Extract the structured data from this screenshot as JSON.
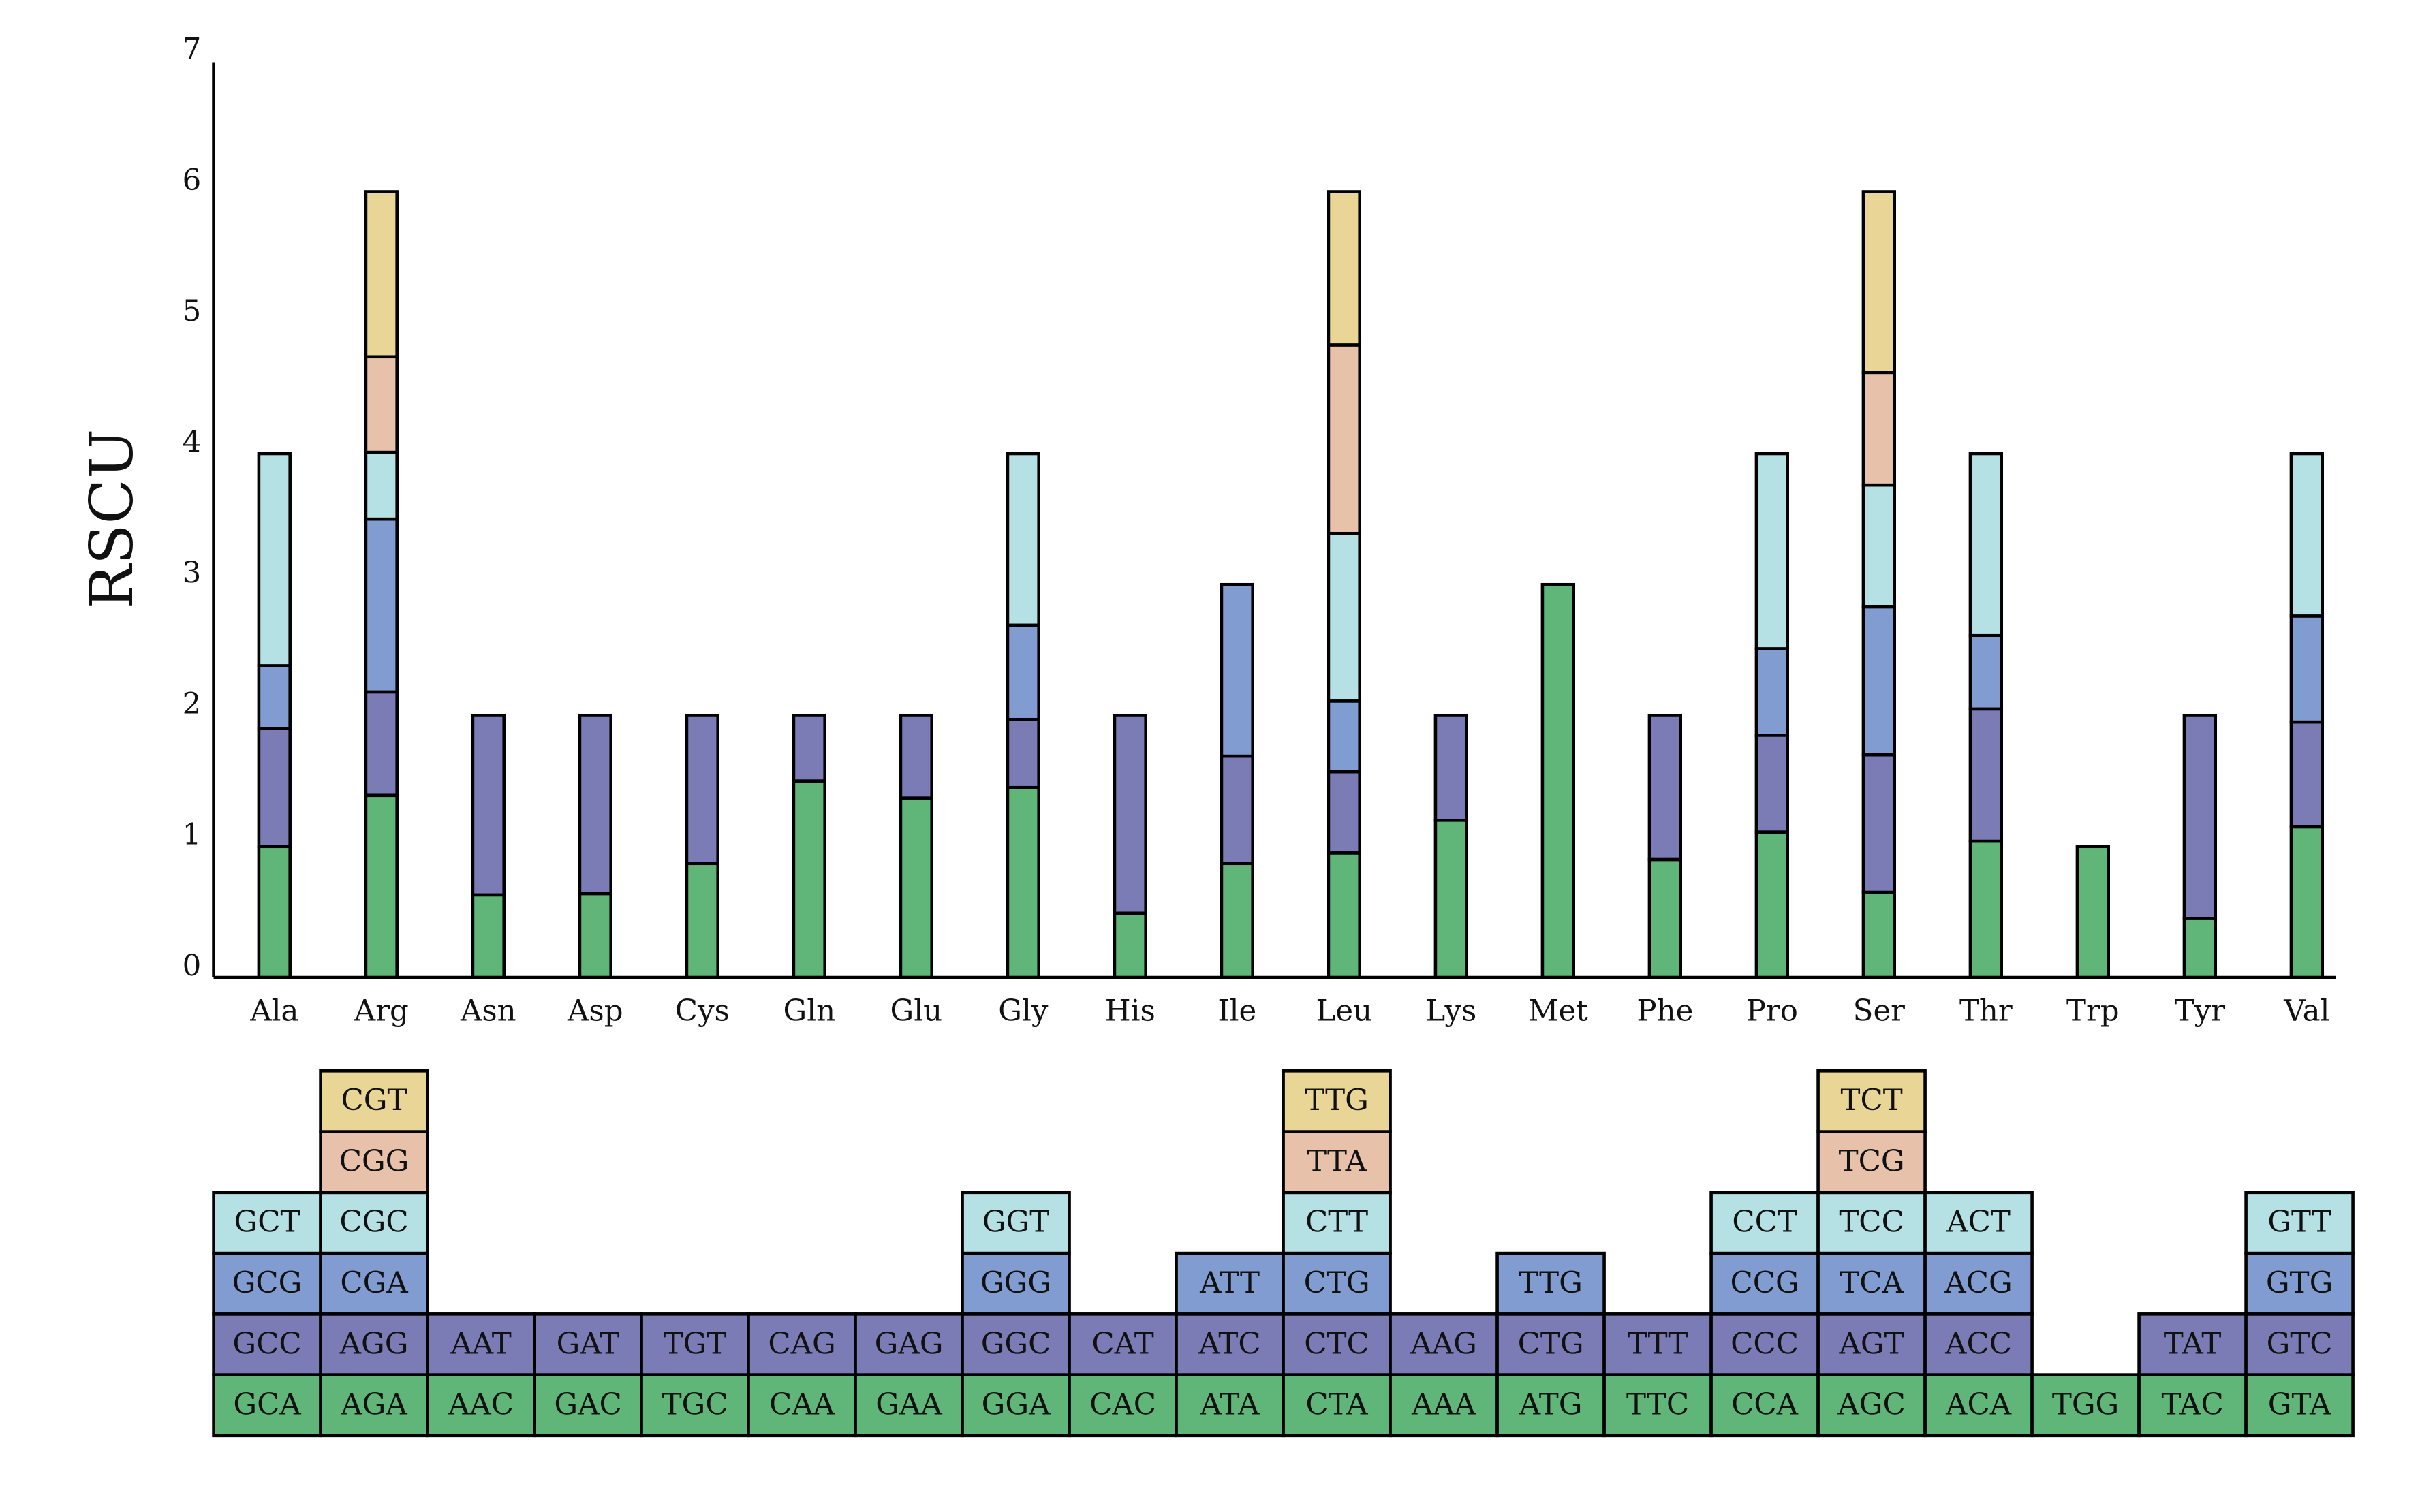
{
  "chart_data": {
    "type": "bar",
    "stacked": true,
    "y_label": "RSCU",
    "categories": [
      "Ala",
      "Arg",
      "Asn",
      "Asp",
      "Cys",
      "Gln",
      "Glu",
      "Gly",
      "His",
      "Ile",
      "Leu",
      "Lys",
      "Met",
      "Phe",
      "Pro",
      "Ser",
      "Thr",
      "Trp",
      "Tyr",
      "Val"
    ],
    "ylim": [
      0,
      7
    ],
    "yticks": [
      0,
      1,
      2,
      3,
      4,
      5,
      6,
      7
    ],
    "grid": false,
    "series": [
      {
        "color": "#60b679",
        "values": [
          1.0,
          1.39,
          0.63,
          0.64,
          0.87,
          1.5,
          1.37,
          1.45,
          0.49,
          0.87,
          0.95,
          1.2,
          3.0,
          0.9,
          1.11,
          0.65,
          1.04,
          1.0,
          0.45,
          1.15
        ],
        "codons": [
          "GCA",
          "AGA",
          "AAC",
          "GAC",
          "TGC",
          "CAA",
          "GAA",
          "GGA",
          "CAC",
          "ATA",
          "CTA",
          "AAA",
          "ATG",
          "TTC",
          "CCA",
          "AGC",
          "ACA",
          "TGG",
          "TAC",
          "GTA"
        ]
      },
      {
        "color": "#7b7bb6",
        "values": [
          0.9,
          0.79,
          1.37,
          1.36,
          1.13,
          0.5,
          0.63,
          0.52,
          1.51,
          0.82,
          0.62,
          0.8,
          null,
          1.1,
          0.74,
          1.05,
          1.01,
          null,
          1.55,
          0.8
        ],
        "codons": [
          "GCC",
          "AGG",
          "AAT",
          "GAT",
          "TGT",
          "CAG",
          "GAG",
          "GGC",
          "CAT",
          "ATC",
          "CTC",
          "AAG",
          "CTG",
          "TTT",
          "CCC",
          "AGT",
          "ACC",
          null,
          "TAT",
          "GTC"
        ]
      },
      {
        "color": "#809cd1",
        "values": [
          0.48,
          1.32,
          null,
          null,
          null,
          null,
          null,
          0.72,
          null,
          1.31,
          0.54,
          null,
          null,
          null,
          0.66,
          1.13,
          0.56,
          null,
          null,
          0.81
        ],
        "codons": [
          "GCG",
          "CGA",
          null,
          null,
          null,
          null,
          null,
          "GGG",
          null,
          "ATT",
          "CTG",
          null,
          "TTG",
          null,
          "CCG",
          "TCA",
          "ACG",
          null,
          null,
          "GTG"
        ]
      },
      {
        "color": "#b6e1e4",
        "values": [
          1.62,
          0.51,
          null,
          null,
          null,
          null,
          null,
          1.31,
          null,
          null,
          1.28,
          null,
          null,
          null,
          1.49,
          0.93,
          1.39,
          null,
          null,
          1.24
        ],
        "codons": [
          "GCT",
          "CGC",
          null,
          null,
          null,
          null,
          null,
          "GGT",
          null,
          null,
          "CTT",
          null,
          null,
          null,
          "CCT",
          "TCC",
          "ACT",
          null,
          null,
          "GTT"
        ]
      },
      {
        "color": "#e8c1ab",
        "values": [
          null,
          0.73,
          null,
          null,
          null,
          null,
          null,
          null,
          null,
          null,
          1.44,
          null,
          null,
          null,
          null,
          0.86,
          null,
          null,
          null,
          null
        ],
        "codons": [
          null,
          "CGG",
          null,
          null,
          null,
          null,
          null,
          null,
          null,
          null,
          "TTA",
          null,
          null,
          null,
          null,
          "TCG",
          null,
          null,
          null,
          null
        ]
      },
      {
        "color": "#e9d697",
        "values": [
          null,
          1.26,
          null,
          null,
          null,
          null,
          null,
          null,
          null,
          null,
          1.17,
          null,
          null,
          null,
          null,
          1.38,
          null,
          null,
          null,
          null
        ],
        "codons": [
          null,
          "CGT",
          null,
          null,
          null,
          null,
          null,
          null,
          null,
          null,
          "TTG",
          null,
          null,
          null,
          null,
          "TCT",
          null,
          null,
          null,
          null
        ]
      }
    ]
  }
}
